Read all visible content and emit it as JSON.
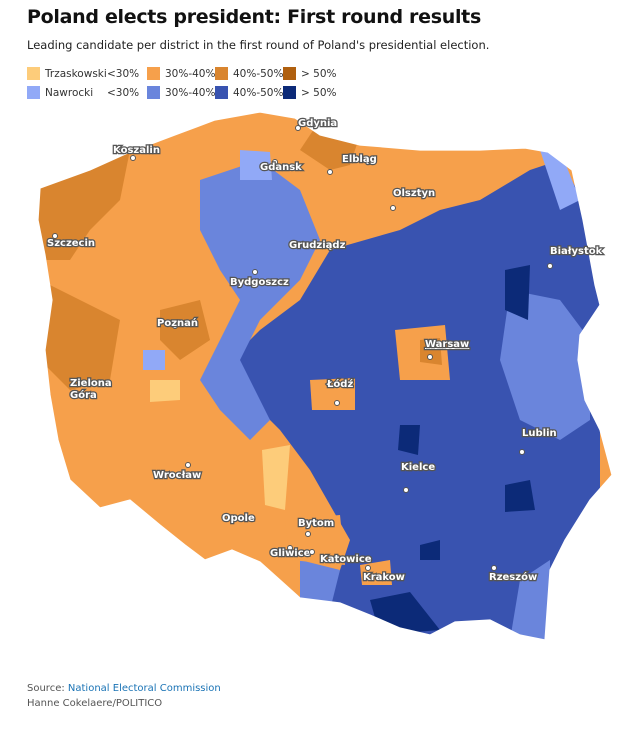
{
  "title": "Poland elects president: First round results",
  "subtitle": "Leading candidate per district in the first round of Poland's presidential election.",
  "legend": {
    "rows": [
      {
        "candidate": "Trzaskowski",
        "bins": [
          "<30%",
          "30%-40%",
          "40%-50%",
          "> 50%"
        ],
        "colors": [
          "#fdcc7a",
          "#f6a04b",
          "#d9852f",
          "#b0600f"
        ]
      },
      {
        "candidate": "Nawrocki",
        "bins": [
          "<30%",
          "30%-40%",
          "40%-50%",
          "> 50%"
        ],
        "colors": [
          "#91a9f7",
          "#6a85dc",
          "#3953b0",
          "#0c2a78"
        ]
      }
    ]
  },
  "cities": [
    "Gdynia",
    "Koszalin",
    "Gdansk",
    "Elbląg",
    "Olsztyn",
    "Szczecin",
    "Grudziądz",
    "Białystok",
    "Bydgoszcz",
    "Poznań",
    "Warsaw",
    "Zielona Góra",
    "Łódź",
    "Lublin",
    "Wrocław",
    "Kielce",
    "Opole",
    "Bytom",
    "Gliwice",
    "Katowice",
    "Krakow",
    "Rzeszów"
  ],
  "footer": {
    "source_label": "Source:",
    "source_link": "National Electoral Commission",
    "credit": "Hanne Cokelaere/POLITICO"
  }
}
